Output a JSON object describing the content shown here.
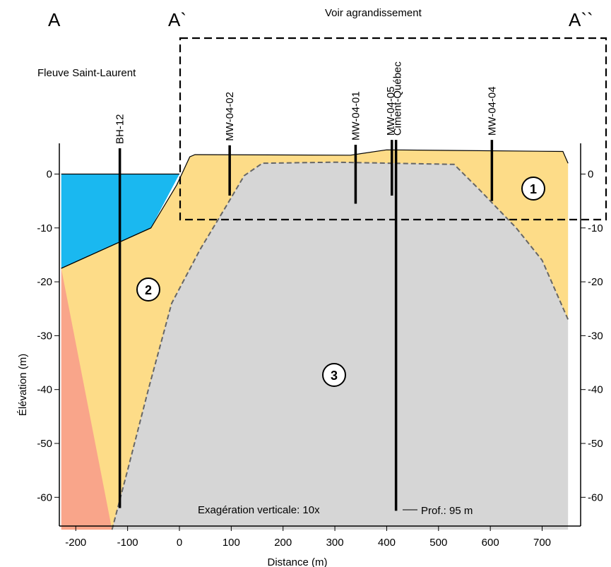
{
  "sections": {
    "a": "A",
    "a_prime": "A`",
    "a_double_prime": "A``"
  },
  "zoom_box_label": "Voir agrandissement",
  "river_label": "Fleuve Saint-Laurent",
  "wells": [
    {
      "name": "BH-12",
      "distance": -115,
      "top_elev": 4,
      "bottom_elev": -62
    },
    {
      "name": "MW-04-02",
      "distance": 97,
      "top_elev": 3.5,
      "bottom_elev": -4
    },
    {
      "name": "MW-04-01",
      "distance": 340,
      "top_elev": 3.6,
      "bottom_elev": -5.5
    },
    {
      "name": "MW-04-05",
      "distance": 410,
      "top_elev": 4.5,
      "bottom_elev": -4
    },
    {
      "name": "Ciment-Québec",
      "distance": 418,
      "top_elev": 4.5,
      "bottom_elev": -62.5
    },
    {
      "name": "MW-04-04",
      "distance": 603,
      "top_elev": 4.5,
      "bottom_elev": -5
    }
  ],
  "units": [
    {
      "id": "1",
      "color": "#fddc88"
    },
    {
      "id": "2",
      "color": "#f9a58a"
    },
    {
      "id": "3",
      "color": "#d6d6d6"
    }
  ],
  "water_color": "#1ab8f0",
  "note": "Exagération verticale: 10x",
  "depth_label": "Prof.: 95 m",
  "axes": {
    "xlabel": "Distance (m)",
    "ylabel": "Élévation (m)",
    "x_ticks": [
      -200,
      -100,
      0,
      100,
      200,
      300,
      400,
      500,
      600,
      700
    ],
    "y_ticks": [
      0,
      -10,
      -20,
      -30,
      -40,
      -50,
      -60
    ],
    "right_zero_label": "0",
    "xlim": [
      -228,
      750
    ],
    "ylim": [
      -66,
      5
    ]
  }
}
